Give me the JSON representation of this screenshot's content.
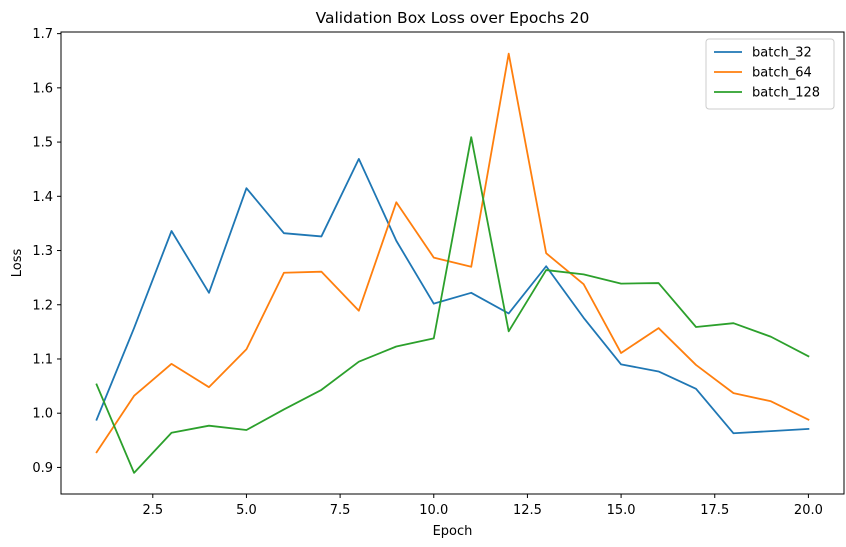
{
  "chart_data": {
    "type": "line",
    "title": "Validation Box Loss over Epochs 20",
    "xlabel": "Epoch",
    "ylabel": "Loss",
    "xlim": [
      0.05,
      20.95
    ],
    "ylim": [
      0.851,
      1.703
    ],
    "xticks": [
      2.5,
      5.0,
      7.5,
      10.0,
      12.5,
      15.0,
      17.5,
      20.0
    ],
    "xtick_labels": [
      "2.5",
      "5.0",
      "7.5",
      "10.0",
      "12.5",
      "15.0",
      "17.5",
      "20.0"
    ],
    "yticks": [
      0.9,
      1.0,
      1.1,
      1.2,
      1.3,
      1.4,
      1.5,
      1.6,
      1.7
    ],
    "ytick_labels": [
      "0.9",
      "1.0",
      "1.1",
      "1.2",
      "1.3",
      "1.4",
      "1.5",
      "1.6",
      "1.7"
    ],
    "grid": false,
    "legend_position": "top-right",
    "x": [
      1,
      2,
      3,
      4,
      5,
      6,
      7,
      8,
      9,
      10,
      11,
      12,
      13,
      14,
      15,
      16,
      17,
      18,
      19,
      20
    ],
    "series": [
      {
        "name": "batch_32",
        "color": "#1f77b4",
        "values": [
          0.988,
          1.157,
          1.336,
          1.222,
          1.415,
          1.332,
          1.326,
          1.469,
          1.318,
          1.202,
          1.222,
          1.184,
          1.271,
          1.176,
          1.09,
          1.077,
          1.045,
          0.963,
          0.967,
          0.971
        ]
      },
      {
        "name": "batch_64",
        "color": "#ff7f0e",
        "values": [
          0.928,
          1.032,
          1.091,
          1.048,
          1.118,
          1.259,
          1.261,
          1.189,
          1.389,
          1.287,
          1.27,
          1.663,
          1.295,
          1.238,
          1.111,
          1.157,
          1.089,
          1.037,
          1.022,
          0.988
        ]
      },
      {
        "name": "batch_128",
        "color": "#2ca02c",
        "values": [
          1.053,
          0.89,
          0.964,
          0.977,
          0.969,
          1.007,
          1.043,
          1.095,
          1.123,
          1.138,
          1.509,
          1.151,
          1.264,
          1.256,
          1.239,
          1.24,
          1.159,
          1.166,
          1.141,
          1.105
        ]
      }
    ]
  }
}
